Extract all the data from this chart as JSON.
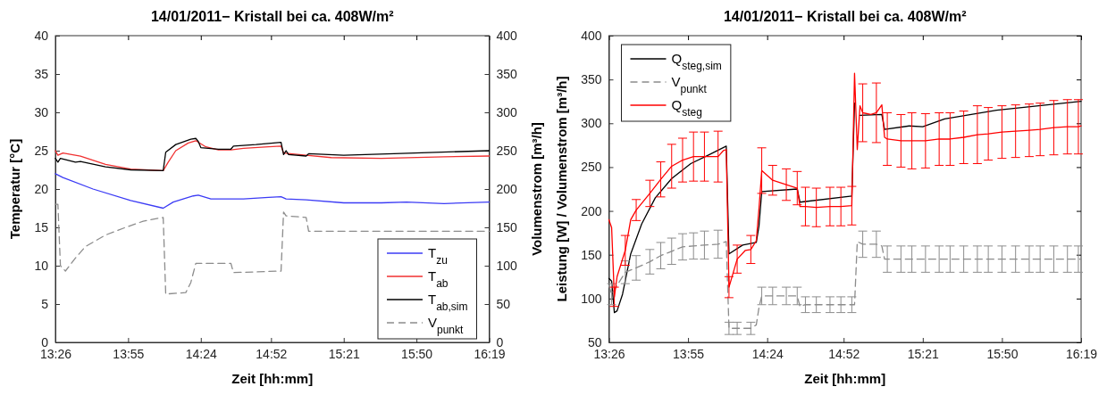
{
  "chart_data": [
    {
      "type": "line",
      "title": "14/01/2011− Kristall bei ca. 408W/m²",
      "xlabel": "Zeit [hh:mm]",
      "ylabel": "Temperatur [°C]",
      "y2label": "Volumenstrom [m³/h]",
      "xlim": [
        "2011-01-14T13:26",
        "2011-01-14T16:19"
      ],
      "xticks": [
        {
          "value": "2011-01-14T13:26",
          "label": "13:26"
        },
        {
          "value": "2011-01-14T13:55",
          "label": "13:55"
        },
        {
          "value": "2011-01-14T14:24",
          "label": "14:24"
        },
        {
          "value": "2011-01-14T14:52",
          "label": "14:52"
        },
        {
          "value": "2011-01-14T15:21",
          "label": "15:21"
        },
        {
          "value": "2011-01-14T15:50",
          "label": "15:50"
        },
        {
          "value": "2011-01-14T16:19",
          "label": "16:19"
        }
      ],
      "ylim": [
        0,
        40
      ],
      "yticks": [
        0,
        5,
        10,
        15,
        20,
        25,
        30,
        35,
        40
      ],
      "y2lim": [
        0,
        400
      ],
      "y2ticks": [
        0,
        50,
        100,
        150,
        200,
        250,
        300,
        350,
        400
      ],
      "legend": "bottom right",
      "grid": false,
      "marker": "none",
      "series": [
        {
          "name": "T$_{zu}$",
          "color": "#3b3bf5",
          "line_style": "solid",
          "x": [
            "2011-01-14T13:26",
            "2011-01-14T13:29",
            "2011-01-14T13:41",
            "2011-01-14T13:56",
            "2011-01-14T14:09",
            "2011-01-14T14:13",
            "2011-01-14T14:21",
            "2011-01-14T14:23",
            "2011-01-14T14:28",
            "2011-01-14T14:41",
            "2011-01-14T14:51",
            "2011-01-14T14:56",
            "2011-01-14T14:58",
            "2011-01-14T15:06",
            "2011-01-14T15:21",
            "2011-01-14T15:36",
            "2011-01-14T15:46",
            "2011-01-14T16:01",
            "2011-01-14T16:19"
          ],
          "values": [
            22,
            21.5,
            20,
            18.5,
            17.5,
            18.3,
            19.1,
            19.2,
            18.7,
            18.7,
            18.9,
            19,
            18.7,
            18.6,
            18.2,
            18.2,
            18.3,
            18.1,
            18.3
          ]
        },
        {
          "name": "T$_{ab}$",
          "color": "#f03030",
          "line_style": "solid",
          "x": [
            "2011-01-14T13:26",
            "2011-01-14T13:27",
            "2011-01-14T13:29",
            "2011-01-14T13:36",
            "2011-01-14T13:46",
            "2011-01-14T13:56",
            "2011-01-14T14:09",
            "2011-01-14T14:11",
            "2011-01-14T14:14",
            "2011-01-14T14:19",
            "2011-01-14T14:22",
            "2011-01-14T14:26",
            "2011-01-14T14:31",
            "2011-01-14T14:36",
            "2011-01-14T14:41",
            "2011-01-14T14:51",
            "2011-01-14T14:56",
            "2011-01-14T14:57",
            "2011-01-14T15:06",
            "2011-01-14T15:16",
            "2011-01-14T15:36",
            "2011-01-14T16:01",
            "2011-01-14T16:19"
          ],
          "values": [
            25,
            24.4,
            24.7,
            24.3,
            23.2,
            22.6,
            22.4,
            23.5,
            25,
            26,
            26.3,
            25.5,
            25.1,
            25.1,
            25.3,
            25.5,
            25.6,
            24.7,
            24.4,
            24.1,
            24,
            24.2,
            24.3
          ]
        },
        {
          "name": "T$_{ab,sim}$",
          "color": "#000000",
          "line_style": "solid",
          "x": [
            "2011-01-14T13:26",
            "2011-01-14T13:27",
            "2011-01-14T13:28",
            "2011-01-14T13:34",
            "2011-01-14T13:36",
            "2011-01-14T13:46",
            "2011-01-14T13:56",
            "2011-01-14T14:09",
            "2011-01-14T14:10",
            "2011-01-14T14:14",
            "2011-01-14T14:20",
            "2011-01-14T14:22",
            "2011-01-14T14:23",
            "2011-01-14T14:24",
            "2011-01-14T14:31",
            "2011-01-14T14:36",
            "2011-01-14T14:37",
            "2011-01-14T14:46",
            "2011-01-14T14:56",
            "2011-01-14T14:57",
            "2011-01-14T14:58",
            "2011-01-14T14:59",
            "2011-01-14T15:06",
            "2011-01-14T15:07",
            "2011-01-14T15:21",
            "2011-01-14T15:41",
            "2011-01-14T16:19"
          ],
          "values": [
            24,
            23.5,
            24,
            23.5,
            23.6,
            22.9,
            22.5,
            22.4,
            24.8,
            25.8,
            26.5,
            26.6,
            26.2,
            25.4,
            25.2,
            25.2,
            25.6,
            25.8,
            26.1,
            24.5,
            25,
            24.5,
            24.3,
            24.6,
            24.4,
            24.6,
            25
          ]
        },
        {
          "name": "V$_{punkt}$",
          "color": "#8c8c8c",
          "line_style": "dashed",
          "axis": "y2",
          "x": [
            "2011-01-14T13:26",
            "2011-01-14T13:27",
            "2011-01-14T13:28",
            "2011-01-14T13:30",
            "2011-01-14T13:34",
            "2011-01-14T13:38",
            "2011-01-14T13:46",
            "2011-01-14T13:54",
            "2011-01-14T14:01",
            "2011-01-14T14:09",
            "2011-01-14T14:10",
            "2011-01-14T14:18",
            "2011-01-14T14:20",
            "2011-01-14T14:22",
            "2011-01-14T14:36",
            "2011-01-14T14:37",
            "2011-01-14T14:56",
            "2011-01-14T14:57",
            "2011-01-14T14:58",
            "2011-01-14T15:06",
            "2011-01-14T15:07",
            "2011-01-14T16:19"
          ],
          "values": [
            180,
            180,
            100,
            93,
            110,
            125,
            140,
            150,
            158,
            163,
            63,
            65,
            78,
            103,
            103,
            91,
            93,
            170,
            165,
            163,
            145,
            145
          ]
        }
      ]
    },
    {
      "type": "line",
      "title": "14/01/2011− Kristall bei ca. 408W/m²",
      "xlabel": "Zeit [hh:mm]",
      "ylabel": "Leistung [W] / Volumenstrom [m³/h]",
      "xlim": [
        "2011-01-14T13:26",
        "2011-01-14T16:19"
      ],
      "xticks": [
        {
          "value": "2011-01-14T13:26",
          "label": "13:26"
        },
        {
          "value": "2011-01-14T13:55",
          "label": "13:55"
        },
        {
          "value": "2011-01-14T14:24",
          "label": "14:24"
        },
        {
          "value": "2011-01-14T14:52",
          "label": "14:52"
        },
        {
          "value": "2011-01-14T15:21",
          "label": "15:21"
        },
        {
          "value": "2011-01-14T15:50",
          "label": "15:50"
        },
        {
          "value": "2011-01-14T16:19",
          "label": "16:19"
        }
      ],
      "ylim": [
        50,
        400
      ],
      "yticks": [
        50,
        100,
        150,
        200,
        250,
        300,
        350,
        400
      ],
      "legend": "top left",
      "grid": false,
      "marker": "none",
      "series": [
        {
          "name": "Q$_{steg,sim}$",
          "color": "#000000",
          "line_style": "solid",
          "x": [
            "2011-01-14T13:26",
            "2011-01-14T13:27",
            "2011-01-14T13:28",
            "2011-01-14T13:29",
            "2011-01-14T13:31",
            "2011-01-14T13:34",
            "2011-01-14T13:38",
            "2011-01-14T13:43",
            "2011-01-14T13:49",
            "2011-01-14T13:56",
            "2011-01-14T14:02",
            "2011-01-14T14:09",
            "2011-01-14T14:10",
            "2011-01-14T14:15",
            "2011-01-14T14:20",
            "2011-01-14T14:21",
            "2011-01-14T14:22",
            "2011-01-14T14:35",
            "2011-01-14T14:36",
            "2011-01-14T14:55",
            "2011-01-14T14:56",
            "2011-01-14T14:57",
            "2011-01-14T14:58",
            "2011-01-14T15:06",
            "2011-01-14T15:07",
            "2011-01-14T15:16",
            "2011-01-14T15:21",
            "2011-01-14T15:29",
            "2011-01-14T15:48",
            "2011-01-14T16:19"
          ],
          "values": [
            123,
            120,
            84,
            86,
            105,
            151,
            185,
            215,
            237,
            254,
            263,
            274,
            151,
            161,
            164,
            183,
            222,
            225,
            210,
            217,
            323,
            null,
            309,
            310,
            293,
            297,
            296,
            305,
            315,
            325
          ]
        },
        {
          "name": "V$_{punkt}$",
          "color": "#8c8c8c",
          "line_style": "dashed",
          "x": [
            "2011-01-14T13:26",
            "2011-01-14T13:27",
            "2011-01-14T13:32",
            "2011-01-14T13:36",
            "2011-01-14T13:41",
            "2011-01-14T13:45",
            "2011-01-14T13:49",
            "2011-01-14T13:53",
            "2011-01-14T13:57",
            "2011-01-14T14:01",
            "2011-01-14T14:06",
            "2011-01-14T14:09",
            "2011-01-14T14:10",
            "2011-01-14T14:13",
            "2011-01-14T14:18",
            "2011-01-14T14:20",
            "2011-01-14T14:21",
            "2011-01-14T14:22",
            "2011-01-14T14:26",
            "2011-01-14T14:31",
            "2011-01-14T14:35",
            "2011-01-14T14:36",
            "2011-01-14T14:38",
            "2011-01-14T14:42",
            "2011-01-14T14:47",
            "2011-01-14T14:51",
            "2011-01-14T14:55",
            "2011-01-14T14:56",
            "2011-01-14T14:57",
            "2011-01-14T14:59",
            "2011-01-14T15:04",
            "2011-01-14T15:06",
            "2011-01-14T15:07",
            "2011-01-14T15:08",
            "2011-01-14T15:13",
            "2011-01-14T15:17",
            "2011-01-14T15:22",
            "2011-01-14T15:27",
            "2011-01-14T15:31",
            "2011-01-14T15:36",
            "2011-01-14T15:41",
            "2011-01-14T15:45",
            "2011-01-14T15:50",
            "2011-01-14T15:55",
            "2011-01-14T16:00",
            "2011-01-14T16:04",
            "2011-01-14T16:09",
            "2011-01-14T16:14",
            "2011-01-14T16:18",
            "2011-01-14T16:19"
          ],
          "values": [
            115,
            105,
            130,
            135,
            142,
            149,
            154,
            159,
            160,
            161,
            162,
            165,
            66,
            66,
            66,
            70,
            90,
            103,
            103,
            103,
            103,
            91,
            93,
            93,
            93,
            93,
            93,
            93,
            165,
            162,
            162,
            160,
            145,
            145,
            145,
            145,
            145,
            145,
            145,
            145,
            145,
            145,
            145,
            145,
            145,
            145,
            145,
            145,
            145,
            145
          ],
          "errors": [
            null,
            12,
            13,
            14,
            14,
            15,
            15,
            15,
            15,
            16,
            16,
            null,
            7,
            7,
            7,
            null,
            null,
            10,
            10,
            10,
            10,
            null,
            9,
            9,
            9,
            9,
            9,
            null,
            null,
            15,
            15,
            null,
            null,
            15,
            15,
            15,
            15,
            15,
            15,
            15,
            15,
            15,
            15,
            15,
            15,
            15,
            15,
            15,
            15,
            null
          ]
        },
        {
          "name": "Q$_{steg}$",
          "color": "#ff0000",
          "line_style": "solid",
          "x": [
            "2011-01-14T13:26",
            "2011-01-14T13:27",
            "2011-01-14T13:28",
            "2011-01-14T13:29",
            "2011-01-14T13:32",
            "2011-01-14T13:34",
            "2011-01-14T13:36",
            "2011-01-14T13:41",
            "2011-01-14T13:45",
            "2011-01-14T13:49",
            "2011-01-14T13:53",
            "2011-01-14T13:57",
            "2011-01-14T14:01",
            "2011-01-14T14:06",
            "2011-01-14T14:08",
            "2011-01-14T14:09",
            "2011-01-14T14:10",
            "2011-01-14T14:13",
            "2011-01-14T14:16",
            "2011-01-14T14:18",
            "2011-01-14T14:20",
            "2011-01-14T14:21",
            "2011-01-14T14:22",
            "2011-01-14T14:26",
            "2011-01-14T14:31",
            "2011-01-14T14:35",
            "2011-01-14T14:36",
            "2011-01-14T14:38",
            "2011-01-14T14:42",
            "2011-01-14T14:47",
            "2011-01-14T14:51",
            "2011-01-14T14:55",
            "2011-01-14T14:56",
            "2011-01-14T14:57",
            "2011-01-14T14:58",
            "2011-01-14T14:59",
            "2011-01-14T15:02",
            "2011-01-14T15:04",
            "2011-01-14T15:06",
            "2011-01-14T15:07",
            "2011-01-14T15:08",
            "2011-01-14T15:13",
            "2011-01-14T15:17",
            "2011-01-14T15:22",
            "2011-01-14T15:27",
            "2011-01-14T15:31",
            "2011-01-14T15:36",
            "2011-01-14T15:41",
            "2011-01-14T15:45",
            "2011-01-14T15:50",
            "2011-01-14T15:55",
            "2011-01-14T16:00",
            "2011-01-14T16:04",
            "2011-01-14T16:09",
            "2011-01-14T16:14",
            "2011-01-14T16:18",
            "2011-01-14T16:19"
          ],
          "values": [
            190,
            181,
            102,
            125,
            155,
            190,
            201,
            220,
            236,
            251,
            258,
            262,
            262,
            262,
            269,
            270,
            113,
            145,
            155,
            156,
            166,
            203,
            246,
            235,
            230,
            226,
            205,
            205,
            204,
            205,
            205,
            206,
            357,
            270,
            320,
            312,
            310,
            312,
            321,
            284,
            282,
            280,
            280,
            280,
            282,
            282,
            284,
            287,
            288,
            290,
            291,
            292,
            293,
            295,
            296,
            296,
            297
          ],
          "errors": [
            null,
            null,
            11,
            null,
            17,
            null,
            12,
            15,
            20,
            25,
            25,
            28,
            28,
            29,
            null,
            null,
            12,
            16,
            null,
            16,
            null,
            null,
            26,
            17,
            18,
            19,
            null,
            22,
            22,
            22,
            22,
            22,
            null,
            null,
            null,
            33,
            null,
            34,
            null,
            null,
            30,
            30,
            32,
            31,
            30,
            30,
            30,
            33,
            30,
            30,
            30,
            30,
            30,
            31,
            31,
            31,
            null
          ]
        }
      ]
    }
  ]
}
